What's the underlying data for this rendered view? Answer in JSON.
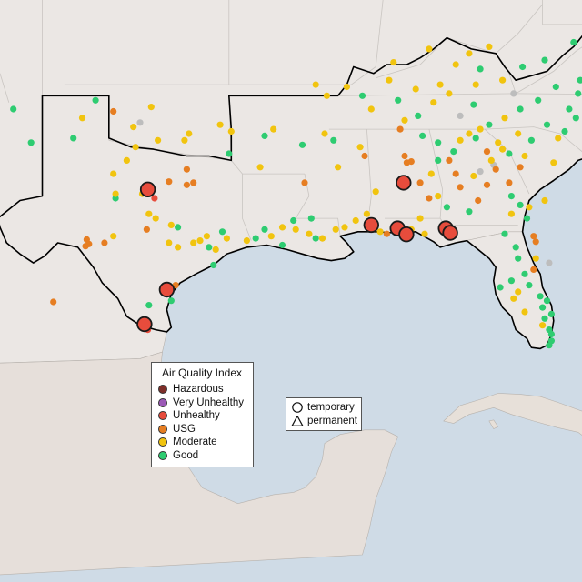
{
  "legend": {
    "title": "Air Quality Index",
    "categories": [
      {
        "label": "Hazardous",
        "color": "#7e2f29"
      },
      {
        "label": "Very Unhealthy",
        "color": "#9b59b6"
      },
      {
        "label": "Unhealthy",
        "color": "#e74c3c"
      },
      {
        "label": "USG",
        "color": "#e67e22"
      },
      {
        "label": "Moderate",
        "color": "#f1c40f"
      },
      {
        "label": "Good",
        "color": "#2ecc71"
      }
    ]
  },
  "monitor_legend": {
    "temporary": "temporary",
    "permanent": "permanent"
  },
  "colors": {
    "ocean": "#cfdbe6",
    "land": "#ebe7e4",
    "no_data": "#bdbdbd",
    "border_outline": "#000000"
  },
  "monitors": {
    "large_unhealthy": [
      [
        -98.25,
        32.3
      ],
      [
        -86.75,
        32.6
      ],
      [
        -88.2,
        30.7
      ],
      [
        -87.02,
        30.55
      ],
      [
        -86.62,
        30.28
      ],
      [
        -84.85,
        30.55
      ],
      [
        -84.65,
        30.35
      ],
      [
        -97.4,
        27.8
      ],
      [
        -98.4,
        26.25
      ]
    ],
    "unhealthy": [
      [
        -97.95,
        31.9
      ],
      [
        -98.25,
        26.0
      ]
    ],
    "usg": [
      [
        -101.0,
        30.05
      ],
      [
        -100.9,
        29.85
      ],
      [
        -101.05,
        29.75
      ],
      [
        -100.2,
        29.9
      ],
      [
        -102.5,
        27.25
      ],
      [
        -97.3,
        32.65
      ],
      [
        -96.5,
        32.5
      ],
      [
        -96.2,
        32.6
      ],
      [
        -98.3,
        30.5
      ],
      [
        -97.0,
        28.0
      ],
      [
        -91.2,
        32.6
      ],
      [
        -88.5,
        33.8
      ],
      [
        -86.7,
        33.8
      ],
      [
        -86.6,
        33.5
      ],
      [
        -86.4,
        33.55
      ],
      [
        -86.0,
        32.6
      ],
      [
        -85.6,
        31.9
      ],
      [
        -84.7,
        33.6
      ],
      [
        -84.4,
        33.0
      ],
      [
        -84.2,
        32.4
      ],
      [
        -83.4,
        31.8
      ],
      [
        -83.0,
        32.5
      ],
      [
        -82.6,
        33.2
      ],
      [
        -82.0,
        32.6
      ],
      [
        -81.5,
        33.3
      ],
      [
        -80.9,
        30.2
      ],
      [
        -80.8,
        29.95
      ],
      [
        -80.9,
        28.7
      ],
      [
        -86.9,
        35.0
      ],
      [
        -87.5,
        30.3
      ],
      [
        -83.0,
        34.0
      ],
      [
        -99.8,
        35.8
      ],
      [
        -96.5,
        33.2
      ]
    ],
    "moderate": [
      [
        -101.2,
        35.5
      ],
      [
        -98.1,
        36.0
      ],
      [
        -99.8,
        33.0
      ],
      [
        -98.5,
        32.1
      ],
      [
        -96.4,
        34.8
      ],
      [
        -96.6,
        34.5
      ],
      [
        -95.0,
        35.2
      ],
      [
        -92.6,
        35.0
      ],
      [
        -90.3,
        34.8
      ],
      [
        -89.7,
        33.3
      ],
      [
        -88.7,
        34.2
      ],
      [
        -88.0,
        32.2
      ],
      [
        -86.0,
        31.0
      ],
      [
        -85.5,
        33.0
      ],
      [
        -85.2,
        32.0
      ],
      [
        -84.2,
        34.5
      ],
      [
        -83.8,
        34.8
      ],
      [
        -83.3,
        35.0
      ],
      [
        -82.2,
        35.5
      ],
      [
        -81.6,
        34.8
      ],
      [
        -81.3,
        33.8
      ],
      [
        -80.4,
        31.8
      ],
      [
        -80.0,
        33.5
      ],
      [
        -79.8,
        34.6
      ],
      [
        -90.7,
        37.0
      ],
      [
        -90.2,
        36.5
      ],
      [
        -89.3,
        36.9
      ],
      [
        -87.4,
        37.2
      ],
      [
        -86.2,
        36.8
      ],
      [
        -85.1,
        37.0
      ],
      [
        -84.4,
        37.9
      ],
      [
        -83.8,
        38.4
      ],
      [
        -82.9,
        38.7
      ],
      [
        -85.6,
        38.6
      ],
      [
        -87.2,
        38.0
      ],
      [
        -97.8,
        34.5
      ],
      [
        -98.9,
        35.1
      ],
      [
        -98.8,
        34.2
      ],
      [
        -99.2,
        33.6
      ],
      [
        -99.7,
        32.1
      ],
      [
        -98.2,
        31.2
      ],
      [
        -97.9,
        31.0
      ],
      [
        -99.8,
        30.2
      ],
      [
        -97.3,
        29.9
      ],
      [
        -96.9,
        29.7
      ],
      [
        -96.2,
        29.9
      ],
      [
        -95.9,
        30.0
      ],
      [
        -95.6,
        30.2
      ],
      [
        -95.2,
        29.6
      ],
      [
        -94.7,
        30.1
      ],
      [
        -93.8,
        30.0
      ],
      [
        -92.7,
        30.2
      ],
      [
        -92.2,
        30.6
      ],
      [
        -91.6,
        30.5
      ],
      [
        -91.0,
        30.3
      ],
      [
        -90.4,
        30.1
      ],
      [
        -89.8,
        30.5
      ],
      [
        -89.4,
        30.6
      ],
      [
        -88.9,
        30.9
      ],
      [
        -88.4,
        31.2
      ],
      [
        -87.8,
        30.4
      ],
      [
        -86.4,
        30.5
      ],
      [
        -85.8,
        30.3
      ],
      [
        -83.6,
        32.9
      ],
      [
        -82.8,
        33.6
      ],
      [
        -82.3,
        34.1
      ],
      [
        -81.9,
        31.2
      ],
      [
        -81.1,
        31.5
      ],
      [
        -80.8,
        29.2
      ],
      [
        -81.6,
        27.7
      ],
      [
        -81.8,
        27.4
      ],
      [
        -81.3,
        26.8
      ],
      [
        -80.5,
        26.2
      ],
      [
        -82.5,
        34.4
      ],
      [
        -86.7,
        35.4
      ],
      [
        -88.2,
        35.9
      ],
      [
        -85.4,
        36.2
      ],
      [
        -84.7,
        36.6
      ],
      [
        -83.5,
        37.0
      ],
      [
        -82.3,
        37.2
      ],
      [
        -97.2,
        30.7
      ],
      [
        -93.2,
        33.3
      ],
      [
        -94.5,
        34.9
      ]
    ],
    "good": [
      [
        -104.3,
        35.9
      ],
      [
        -103.5,
        34.4
      ],
      [
        -100.6,
        36.3
      ],
      [
        -101.6,
        34.6
      ],
      [
        -99.7,
        31.9
      ],
      [
        -96.9,
        30.6
      ],
      [
        -95.5,
        29.7
      ],
      [
        -94.9,
        30.4
      ],
      [
        -93.0,
        30.5
      ],
      [
        -91.7,
        30.9
      ],
      [
        -90.9,
        31.0
      ],
      [
        -90.7,
        30.1
      ],
      [
        -92.2,
        29.8
      ],
      [
        -93.4,
        30.1
      ],
      [
        -95.3,
        28.9
      ],
      [
        -97.2,
        27.3
      ],
      [
        -98.2,
        27.1
      ],
      [
        -82.0,
        33.9
      ],
      [
        -81.0,
        34.5
      ],
      [
        -80.3,
        35.2
      ],
      [
        -79.5,
        34.9
      ],
      [
        -79.0,
        35.5
      ],
      [
        -78.4,
        35.8
      ],
      [
        -77.9,
        36.0
      ],
      [
        -77.2,
        36.2
      ],
      [
        -76.5,
        36.4
      ],
      [
        -77.6,
        37.0
      ],
      [
        -77.1,
        37.5
      ],
      [
        -76.7,
        38.0
      ],
      [
        -77.7,
        38.6
      ],
      [
        -78.8,
        37.2
      ],
      [
        -79.9,
        36.9
      ],
      [
        -80.7,
        36.3
      ],
      [
        -81.5,
        35.9
      ],
      [
        -82.9,
        35.2
      ],
      [
        -83.5,
        34.6
      ],
      [
        -84.5,
        34.0
      ],
      [
        -85.2,
        34.4
      ],
      [
        -85.9,
        34.7
      ],
      [
        -86.1,
        35.6
      ],
      [
        -87.0,
        36.3
      ],
      [
        -88.6,
        36.5
      ],
      [
        -81.4,
        37.8
      ],
      [
        -80.4,
        38.1
      ],
      [
        -79.1,
        38.9
      ],
      [
        -78.2,
        39.5
      ],
      [
        -76.8,
        39.6
      ],
      [
        -76.5,
        40.3
      ],
      [
        -77.9,
        40.0
      ],
      [
        -83.3,
        37.7
      ],
      [
        -83.6,
        36.1
      ],
      [
        -80.1,
        25.8
      ],
      [
        -80.2,
        26.0
      ],
      [
        -80.4,
        26.5
      ],
      [
        -80.1,
        26.7
      ],
      [
        -80.5,
        27.0
      ],
      [
        -80.6,
        27.5
      ],
      [
        -81.1,
        28.0
      ],
      [
        -81.3,
        28.5
      ],
      [
        -81.6,
        29.2
      ],
      [
        -81.7,
        29.7
      ],
      [
        -82.2,
        30.3
      ],
      [
        -80.1,
        25.5
      ],
      [
        -80.2,
        25.3
      ],
      [
        -81.2,
        31.0
      ],
      [
        -81.5,
        31.6
      ],
      [
        -81.9,
        32.0
      ],
      [
        -85.2,
        33.6
      ],
      [
        -84.8,
        31.5
      ],
      [
        -83.8,
        31.3
      ],
      [
        -89.9,
        34.5
      ],
      [
        -91.3,
        34.3
      ],
      [
        -93.0,
        34.7
      ],
      [
        -94.6,
        33.9
      ],
      [
        -80.3,
        27.3
      ],
      [
        -81.9,
        28.2
      ],
      [
        -82.4,
        27.9
      ],
      [
        -78.9,
        36.6
      ],
      [
        -79.3,
        35.9
      ]
    ],
    "no_data": [
      [
        -98.6,
        35.3
      ],
      [
        -83.3,
        33.1
      ],
      [
        -82.7,
        33.4
      ],
      [
        -81.8,
        36.6
      ],
      [
        -80.2,
        29.0
      ],
      [
        -84.2,
        35.6
      ]
    ]
  }
}
